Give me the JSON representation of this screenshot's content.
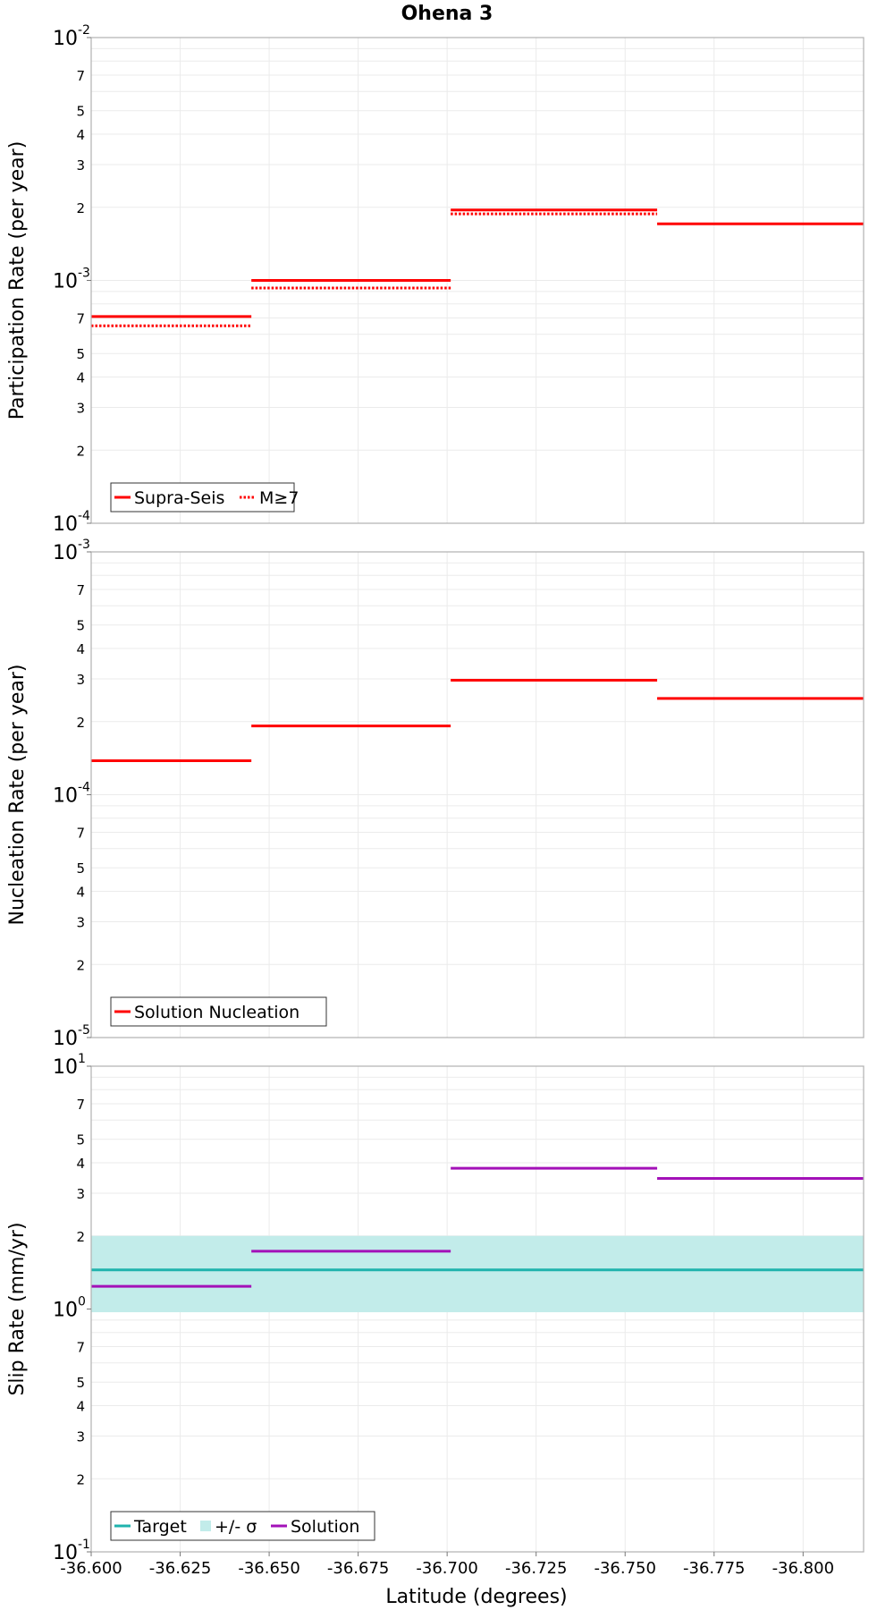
{
  "chart_data": {
    "title": "Ohena 3",
    "xlabel": "Latitude (degrees)",
    "xlim": [
      -36.6,
      -36.817
    ],
    "xticks": [
      "-36.600",
      "-36.625",
      "-36.650",
      "-36.675",
      "-36.700",
      "-36.725",
      "-36.750",
      "-36.775",
      "-36.800"
    ],
    "xtick_values": [
      -36.6,
      -36.625,
      -36.65,
      -36.675,
      -36.7,
      -36.725,
      -36.75,
      -36.775,
      -36.8
    ],
    "panels": [
      {
        "type": "line",
        "scale": "log",
        "ylabel": "Participation Rate (per year)",
        "ylim": [
          0.0001,
          0.01
        ],
        "major_ticks": [
          {
            "base": "10",
            "exp": "-4",
            "value": 0.0001
          },
          {
            "base": "10",
            "exp": "-3",
            "value": 0.001
          },
          {
            "base": "10",
            "exp": "-2",
            "value": 0.01
          }
        ],
        "minor_labels": [
          "2",
          "3",
          "4",
          "5",
          "7"
        ],
        "series": [
          {
            "name": "Supra-Seis",
            "color": "#ff0000",
            "style": "solid",
            "segments": [
              {
                "x0": -36.6,
                "x1": -36.645,
                "y": 0.00071
              },
              {
                "x0": -36.645,
                "x1": -36.701,
                "y": 0.001
              },
              {
                "x0": -36.701,
                "x1": -36.759,
                "y": 0.00195
              },
              {
                "x0": -36.759,
                "x1": -36.817,
                "y": 0.00171
              }
            ]
          },
          {
            "name": "M≥7",
            "color": "#ff0000",
            "style": "dotted",
            "segments": [
              {
                "x0": -36.6,
                "x1": -36.645,
                "y": 0.00065
              },
              {
                "x0": -36.645,
                "x1": -36.701,
                "y": 0.00093
              },
              {
                "x0": -36.701,
                "x1": -36.759,
                "y": 0.00188
              }
            ]
          }
        ],
        "legend": [
          {
            "label": "Supra-Seis",
            "kind": "solid",
            "color": "#ff0000"
          },
          {
            "label": "M≥7",
            "kind": "dotted",
            "color": "#ff0000"
          }
        ]
      },
      {
        "type": "line",
        "scale": "log",
        "ylabel": "Nucleation Rate (per year)",
        "ylim": [
          1e-05,
          0.001
        ],
        "major_ticks": [
          {
            "base": "10",
            "exp": "-5",
            "value": 1e-05
          },
          {
            "base": "10",
            "exp": "-4",
            "value": 0.0001
          },
          {
            "base": "10",
            "exp": "-3",
            "value": 0.001
          }
        ],
        "minor_labels": [
          "2",
          "3",
          "4",
          "5",
          "7"
        ],
        "series": [
          {
            "name": "Solution Nucleation",
            "color": "#ff0000",
            "style": "solid",
            "segments": [
              {
                "x0": -36.6,
                "x1": -36.645,
                "y": 0.000138
              },
              {
                "x0": -36.645,
                "x1": -36.701,
                "y": 0.000192
              },
              {
                "x0": -36.701,
                "x1": -36.759,
                "y": 0.000296
              },
              {
                "x0": -36.759,
                "x1": -36.817,
                "y": 0.000249
              }
            ]
          }
        ],
        "legend": [
          {
            "label": "Solution Nucleation",
            "kind": "solid",
            "color": "#ff0000"
          }
        ]
      },
      {
        "type": "line",
        "scale": "log",
        "ylabel": "Slip Rate (mm/yr)",
        "ylim": [
          0.1,
          10
        ],
        "major_ticks": [
          {
            "base": "10",
            "exp": "-1",
            "value": 0.1
          },
          {
            "base": "10",
            "exp": "0",
            "value": 1
          },
          {
            "base": "10",
            "exp": "1",
            "value": 10
          }
        ],
        "minor_labels": [
          "2",
          "3",
          "4",
          "5",
          "7"
        ],
        "band": {
          "name": "+/- σ",
          "color": "#c2ecea",
          "x0": -36.6,
          "x1": -36.817,
          "y0": 0.97,
          "y1": 2.0
        },
        "series": [
          {
            "name": "Target",
            "color": "#1fb3ad",
            "style": "solid",
            "segments": [
              {
                "x0": -36.6,
                "x1": -36.817,
                "y": 1.45
              }
            ]
          },
          {
            "name": "Solution",
            "color": "#a311b8",
            "style": "solid",
            "segments": [
              {
                "x0": -36.6,
                "x1": -36.645,
                "y": 1.24
              },
              {
                "x0": -36.645,
                "x1": -36.701,
                "y": 1.73
              },
              {
                "x0": -36.701,
                "x1": -36.759,
                "y": 3.8
              },
              {
                "x0": -36.759,
                "x1": -36.817,
                "y": 3.45
              }
            ]
          }
        ],
        "legend": [
          {
            "label": "Target",
            "kind": "solid",
            "color": "#1fb3ad"
          },
          {
            "label": "+/- σ",
            "kind": "band",
            "color": "#c2ecea"
          },
          {
            "label": "Solution",
            "kind": "solid",
            "color": "#a311b8"
          }
        ]
      }
    ]
  }
}
